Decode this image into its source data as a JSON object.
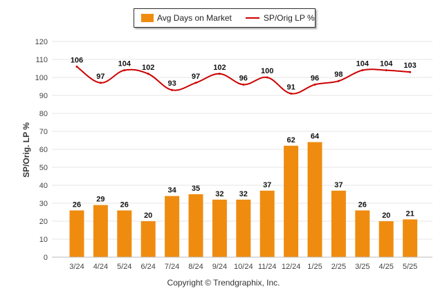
{
  "legend": {
    "bar_label": "Avg Days on Market",
    "line_label": "SP/Orig LP %"
  },
  "ylabel": "SP/Orig. LP %",
  "copyright": "Copyright © Trendgraphix, Inc.",
  "colors": {
    "bar": "#ef8c10",
    "line": "#cc0000",
    "grid": "#e6e6e6"
  },
  "chart_data": {
    "type": "bar",
    "categories": [
      "3/24",
      "4/24",
      "5/24",
      "6/24",
      "7/24",
      "8/24",
      "9/24",
      "10/24",
      "11/24",
      "12/24",
      "1/25",
      "2/25",
      "3/25",
      "4/25",
      "5/25"
    ],
    "series": [
      {
        "name": "Avg Days on Market",
        "type": "bar",
        "values": [
          26,
          29,
          26,
          20,
          34,
          35,
          32,
          32,
          37,
          62,
          64,
          37,
          26,
          20,
          21
        ]
      },
      {
        "name": "SP/Orig LP %",
        "type": "line",
        "values": [
          106,
          97,
          104,
          102,
          93,
          97,
          102,
          96,
          100,
          91,
          96,
          98,
          104,
          104,
          103
        ]
      }
    ],
    "ylabel": "SP/Orig. LP %",
    "ylim": [
      0,
      120
    ],
    "yticks": [
      0,
      10,
      20,
      30,
      40,
      50,
      60,
      70,
      80,
      90,
      100,
      110,
      120
    ],
    "grid": true,
    "legend_position": "top-center"
  }
}
